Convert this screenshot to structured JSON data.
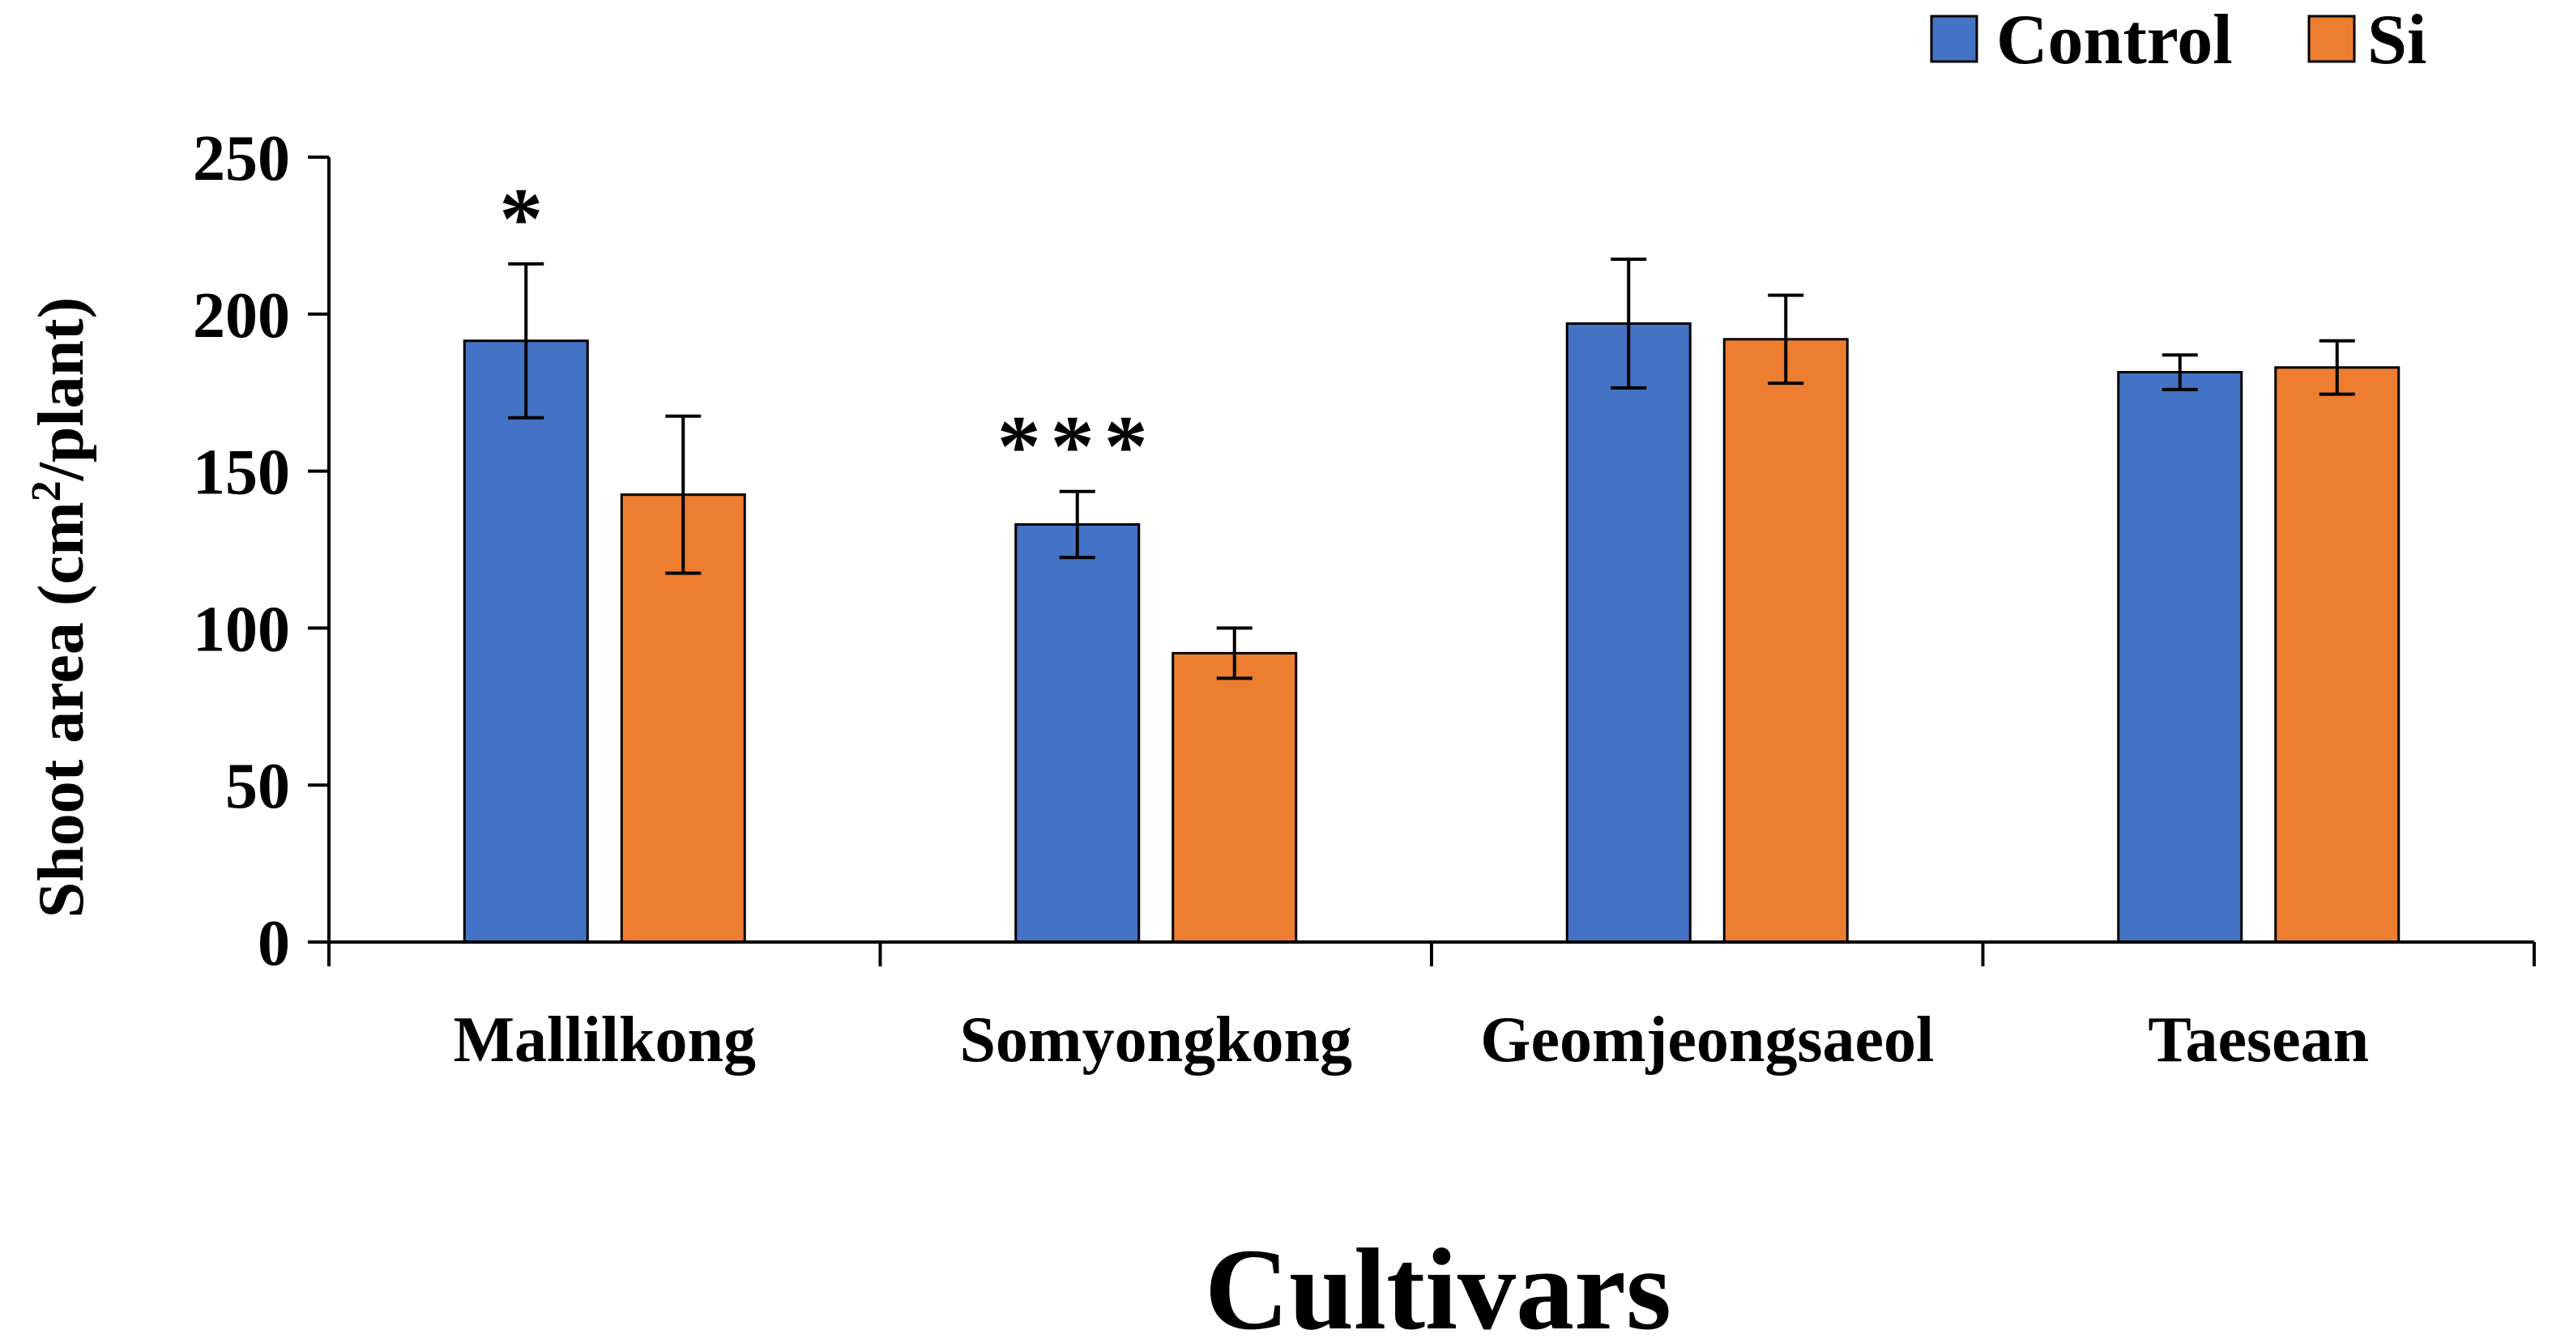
{
  "chart_data": {
    "type": "bar",
    "title": "",
    "xlabel": "Cultivars",
    "ylabel": "Shoot area (cm²/plant)",
    "ylabel_parts": {
      "before": "Shoot area (cm",
      "sup": "2",
      "after": "/plant)"
    },
    "ylim": [
      0,
      250
    ],
    "yticks": [
      0,
      50,
      100,
      150,
      200,
      250
    ],
    "grid": false,
    "legend_position": "top-right",
    "categories": [
      "Mallilkong",
      "Somyongkong",
      "Geomjeongsaeol",
      "Taesean"
    ],
    "series": [
      {
        "name": "Control",
        "color": "#4472C4",
        "values": [
          191.5,
          133,
          197,
          181.5
        ],
        "errors": [
          24.5,
          10.5,
          20.5,
          5.5
        ]
      },
      {
        "name": "Si",
        "color": "#ED7D31",
        "values": [
          142.5,
          92,
          192,
          183
        ],
        "errors": [
          25,
          8,
          14,
          8.5
        ]
      }
    ],
    "annotations": [
      {
        "category": "Mallilkong",
        "series": "Control",
        "text": "*"
      },
      {
        "category": "Somyongkong",
        "series": "Control",
        "text": "***"
      }
    ]
  }
}
